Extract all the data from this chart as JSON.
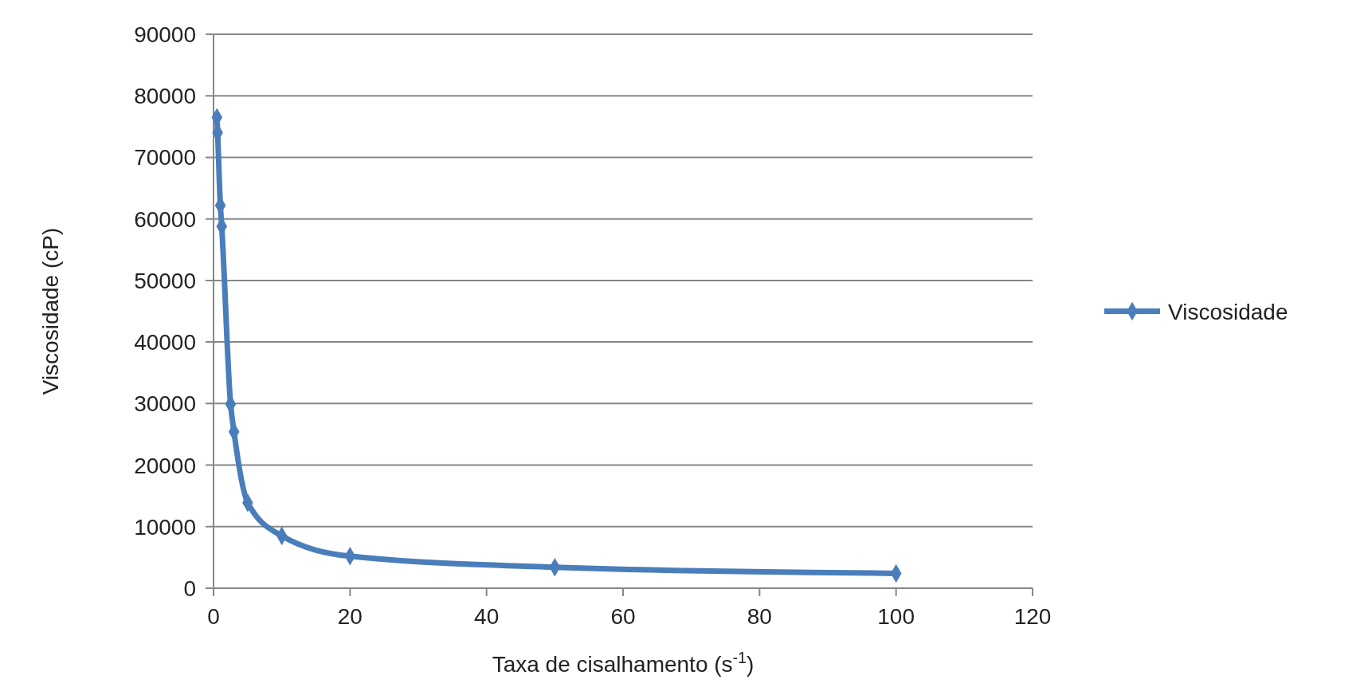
{
  "chart_data": {
    "type": "line",
    "xlabel": "Taxa de cisalhamento (s$^{-1}$)",
    "ylabel": "Viscosidade (cP)",
    "x": [
      0.5,
      0.6,
      1,
      1.2,
      2.5,
      3,
      5,
      10,
      20,
      50,
      100
    ],
    "series": [
      {
        "name": "Viscosidade",
        "color": "#4a7ebb",
        "values": [
          76500,
          74000,
          62200,
          58800,
          29900,
          25400,
          13900,
          8500,
          5200,
          3400,
          2400
        ]
      }
    ],
    "xlim": [
      0,
      120
    ],
    "xticks": [
      0,
      20,
      40,
      60,
      80,
      100,
      120
    ],
    "ylim": [
      0,
      90000
    ],
    "yticks": [
      0,
      10000,
      20000,
      30000,
      40000,
      50000,
      60000,
      70000,
      80000,
      90000
    ],
    "grid": "y",
    "legend": "right",
    "marker": "diamond",
    "line_style": "solid"
  }
}
